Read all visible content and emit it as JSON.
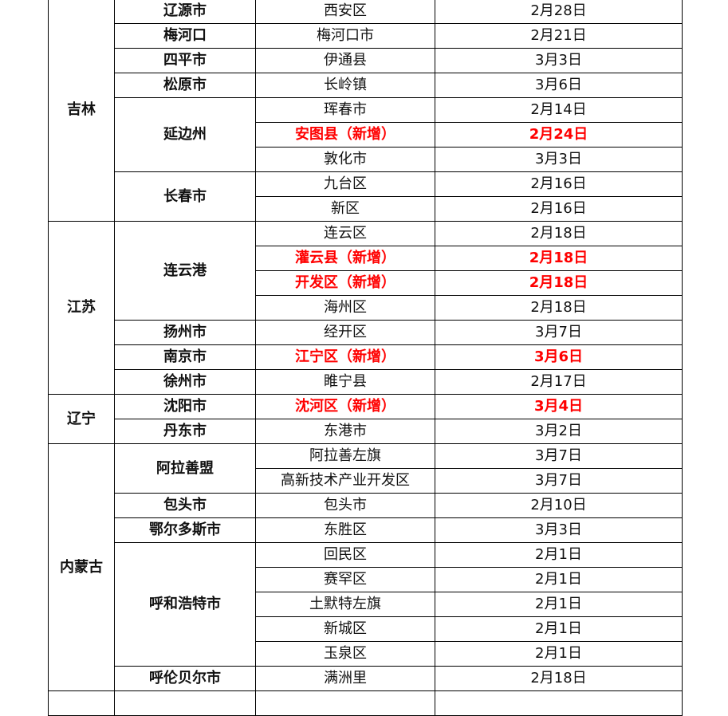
{
  "table": {
    "provinces": [
      {
        "name": "吉林",
        "cities": [
          {
            "name": "辽源市",
            "districts": [
              {
                "name": "西安区",
                "date": "2月28日"
              }
            ]
          },
          {
            "name": "梅河口",
            "districts": [
              {
                "name": "梅河口市",
                "date": "2月21日"
              }
            ]
          },
          {
            "name": "四平市",
            "districts": [
              {
                "name": "伊通县",
                "date": "3月3日"
              }
            ]
          },
          {
            "name": "松原市",
            "districts": [
              {
                "name": "长岭镇",
                "date": "3月6日"
              }
            ]
          },
          {
            "name": "延边州",
            "districts": [
              {
                "name": "珲春市",
                "date": "2月14日"
              },
              {
                "name": "安图县（新增）",
                "date": "2月24日",
                "new": true
              },
              {
                "name": "敦化市",
                "date": "3月3日"
              }
            ]
          },
          {
            "name": "长春市",
            "districts": [
              {
                "name": "九台区",
                "date": "2月16日"
              },
              {
                "name": "新区",
                "date": "2月16日"
              }
            ]
          }
        ]
      },
      {
        "name": "江苏",
        "cities": [
          {
            "name": "连云港",
            "districts": [
              {
                "name": "连云区",
                "date": "2月18日"
              },
              {
                "name": "灌云县（新增）",
                "date": "2月18日",
                "new": true
              },
              {
                "name": "开发区（新增）",
                "date": "2月18日",
                "new": true
              },
              {
                "name": "海州区",
                "date": "2月18日"
              }
            ]
          },
          {
            "name": "扬州市",
            "districts": [
              {
                "name": "经开区",
                "date": "3月7日"
              }
            ]
          },
          {
            "name": "南京市",
            "districts": [
              {
                "name": "江宁区（新增）",
                "date": "3月6日",
                "new": true
              }
            ]
          },
          {
            "name": "徐州市",
            "districts": [
              {
                "name": "睢宁县",
                "date": "2月17日"
              }
            ]
          }
        ]
      },
      {
        "name": "辽宁",
        "cities": [
          {
            "name": "沈阳市",
            "districts": [
              {
                "name": "沈河区（新增）",
                "date": "3月4日",
                "new": true
              }
            ]
          },
          {
            "name": "丹东市",
            "districts": [
              {
                "name": "东港市",
                "date": "3月2日"
              }
            ]
          }
        ]
      },
      {
        "name": "内蒙古",
        "cities": [
          {
            "name": "阿拉善盟",
            "districts": [
              {
                "name": "阿拉善左旗",
                "date": "3月7日"
              },
              {
                "name": "高新技术产业开发区",
                "date": "3月7日"
              }
            ]
          },
          {
            "name": "包头市",
            "districts": [
              {
                "name": "包头市",
                "date": "2月10日"
              }
            ]
          },
          {
            "name": "鄂尔多斯市",
            "districts": [
              {
                "name": "东胜区",
                "date": "3月3日"
              }
            ]
          },
          {
            "name": "呼和浩特市",
            "districts": [
              {
                "name": "回民区",
                "date": "2月1日"
              },
              {
                "name": "赛罕区",
                "date": "2月1日"
              },
              {
                "name": "土默特左旗",
                "date": "2月1日"
              },
              {
                "name": "新城区",
                "date": "2月1日"
              },
              {
                "name": "玉泉区",
                "date": "2月1日"
              }
            ]
          },
          {
            "name": "呼伦贝尔市",
            "districts": [
              {
                "name": "满洲里",
                "date": "2月18日"
              }
            ]
          }
        ]
      }
    ],
    "colors": {
      "new_highlight": "#ff0000",
      "text": "#111111",
      "border": "#000000"
    }
  }
}
